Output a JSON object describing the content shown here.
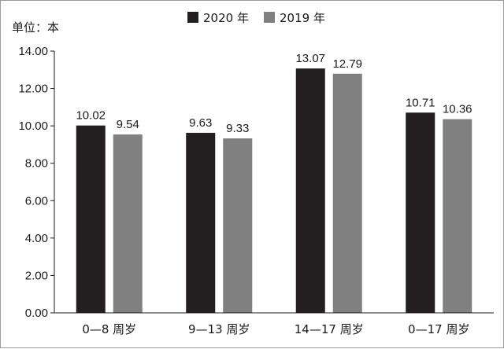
{
  "chart_data": {
    "type": "bar",
    "unit_label": "单位：本",
    "categories": [
      "0—8 周岁",
      "9—13 周岁",
      "14—17 周岁",
      "0—17 周岁"
    ],
    "series": [
      {
        "name": "2020 年",
        "color": "#231f20",
        "values": [
          10.02,
          9.63,
          13.07,
          10.71
        ],
        "labels": [
          "10.02",
          "9.63",
          "13.07",
          "10.71"
        ]
      },
      {
        "name": "2019 年",
        "color": "#808080",
        "values": [
          9.54,
          9.33,
          12.79,
          10.36
        ],
        "labels": [
          "9.54",
          "9.33",
          "12.79",
          "10.36"
        ]
      }
    ],
    "ylim": [
      0,
      14
    ],
    "yticks": [
      0,
      2,
      4,
      6,
      8,
      10,
      12,
      14
    ],
    "ytick_labels": [
      "0.00",
      "2.00",
      "4.00",
      "6.00",
      "8.00",
      "10.00",
      "12.00",
      "14.00"
    ],
    "grid": false,
    "legend_position": "top"
  }
}
